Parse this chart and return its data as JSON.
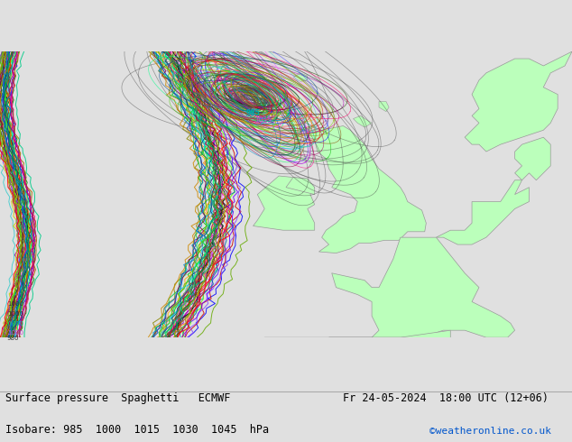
{
  "title_left": "Surface pressure  Spaghetti   ECMWF",
  "title_right": "Fr 24-05-2024  18:00 UTC (12+06)",
  "subtitle": "Isobare: 985  1000  1015  1030  1045  hPa",
  "copyright": "©weatheronline.co.uk",
  "bg_color": "#e0e0e0",
  "land_color": "#bbffbb",
  "coast_color": "#999999",
  "member_colors": [
    "#ff0000",
    "#00bb00",
    "#0000ff",
    "#ff8800",
    "#aa00aa",
    "#00aaaa",
    "#888800",
    "#ff44ff",
    "#008800",
    "#4444ff",
    "#cc0000",
    "#44cccc",
    "#ffaa00",
    "#8844ff",
    "#ff0088",
    "#00ff88",
    "#8800cc",
    "#cccc00",
    "#00ccff",
    "#ff88ff",
    "#666666",
    "#333333",
    "#111111",
    "#224400",
    "#002244",
    "#ff6600",
    "#6600ff",
    "#00ff66",
    "#ff0066",
    "#66ff00",
    "#cc4400",
    "#0044cc",
    "#44cc00",
    "#cc0044",
    "#00cc44",
    "#884400",
    "#004488",
    "#448800",
    "#880044",
    "#008844",
    "#aa6600",
    "#0066aa",
    "#66aa00",
    "#aa0066",
    "#00aa66",
    "#cc8800",
    "#0088cc",
    "#88cc00",
    "#cc0088",
    "#00cc88"
  ],
  "lon_min": -28,
  "lon_max": 12,
  "lat_min": 44,
  "lat_max": 64,
  "low_lon": -10.5,
  "low_lat": 60.8
}
